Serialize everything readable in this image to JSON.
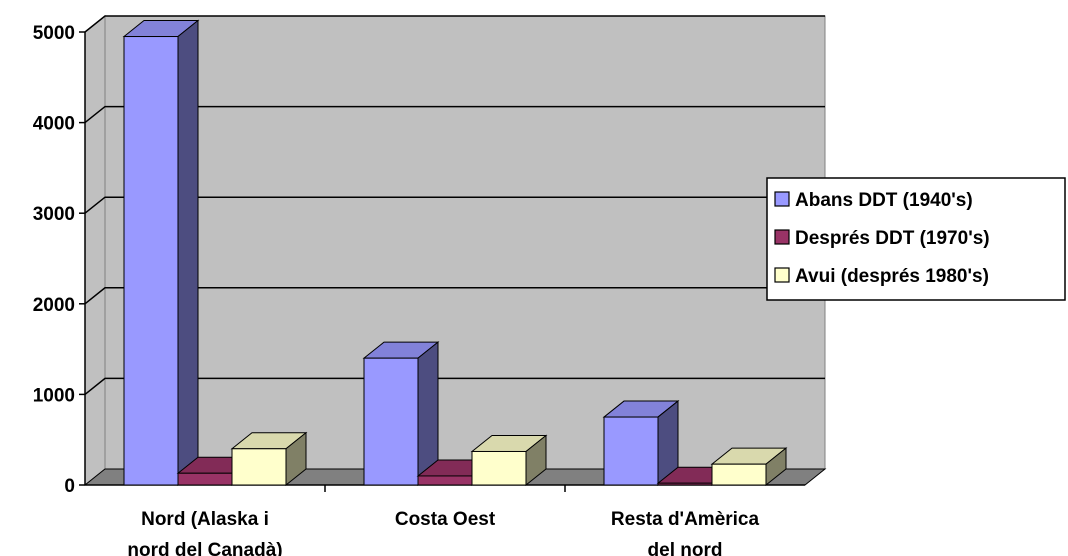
{
  "chart_data": {
    "type": "bar",
    "title": "",
    "xlabel": "",
    "ylabel": "",
    "ylim": [
      0,
      5000
    ],
    "yticks": [
      0,
      1000,
      2000,
      3000,
      4000,
      5000
    ],
    "grid": true,
    "legend": "right",
    "categories": [
      [
        "Nord (Alaska i",
        "nord del Canadà)"
      ],
      [
        "Costa Oest"
      ],
      [
        "Resta d'Amèrica",
        "del nord"
      ]
    ],
    "series": [
      {
        "name": "Abans DDT (1940's)",
        "values": [
          4950,
          1400,
          750
        ],
        "color": "#9999ff"
      },
      {
        "name": "Després DDT (1970's)",
        "values": [
          130,
          100,
          20
        ],
        "color": "#993366"
      },
      {
        "name": "Avui (després 1980's)",
        "values": [
          400,
          370,
          230
        ],
        "color": "#ffffcc"
      }
    ],
    "style": {
      "wall_color": "#c0c0c0",
      "floor_color": "#808080",
      "grid_color": "#000000",
      "legend_border": "#000000"
    }
  }
}
